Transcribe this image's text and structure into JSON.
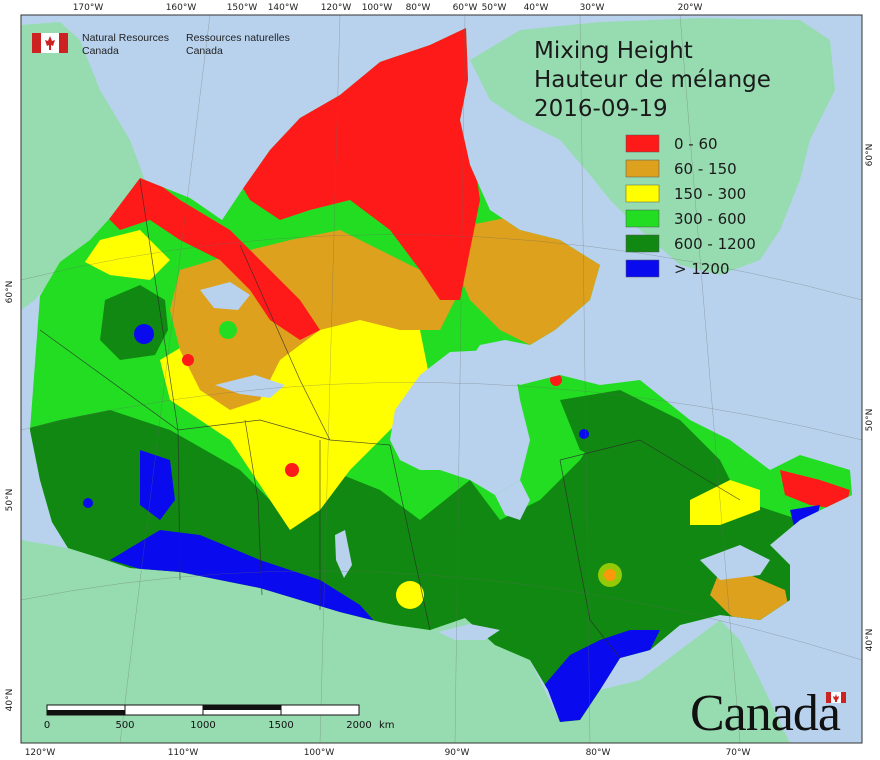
{
  "title": {
    "line1": "Mixing Height",
    "line2": "Hauteur de mélange",
    "date": "2016-09-19"
  },
  "agency": {
    "en_line1": "Natural Resources",
    "en_line2": "Canada",
    "fr_line1": "Ressources naturelles",
    "fr_line2": "Canada",
    "flag_icon": "canada-flag-icon"
  },
  "wordmark": "Canada",
  "legend": [
    {
      "label": "0 - 60",
      "color": "#ff1a1a"
    },
    {
      "label": "60 - 150",
      "color": "#dda11e"
    },
    {
      "label": "150 - 300",
      "color": "#ffff00"
    },
    {
      "label": "300 - 600",
      "color": "#22dd22"
    },
    {
      "label": "600 - 1200",
      "color": "#118811"
    },
    {
      "label": "> 1200",
      "color": "#0a0aee"
    }
  ],
  "graticule": {
    "top": [
      "170°W",
      "160°W",
      "150°W",
      "140°W",
      "120°W",
      "100°W",
      "80°W",
      "60°W",
      "50°W",
      "40°W",
      "30°W",
      "20°W"
    ],
    "bottom": [
      "120°W",
      "110°W",
      "100°W",
      "90°W",
      "80°W",
      "70°W"
    ],
    "left": [
      "60°N",
      "50°N",
      "40°N"
    ],
    "right": [
      "60°N",
      "50°N",
      "40°N"
    ]
  },
  "scale_bar": {
    "labels": [
      "0",
      "500",
      "1000",
      "1500",
      "2000"
    ],
    "unit": "km"
  },
  "colors": {
    "ocean": "#b8d2ee",
    "foreign_land": "#97dcb1",
    "frame": "#333333"
  }
}
